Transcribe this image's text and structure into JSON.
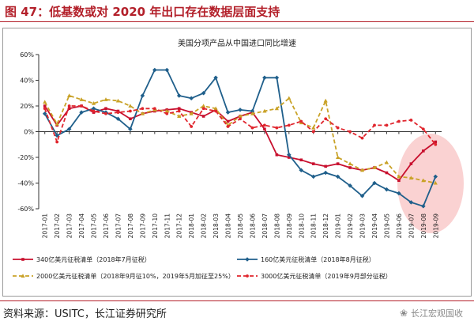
{
  "figure": {
    "title": "图 47：低基数或对 2020 年出口存在数据层面支持",
    "source": "资料来源：USITC，长江证券研究所",
    "watermark": "长江宏观国收",
    "watermark_icon": "wechat-icon"
  },
  "chart_data": {
    "type": "line",
    "title": "美国分项产品从中国进口同比增速",
    "yticks": [
      "60%",
      "40%",
      "20%",
      "0%",
      "-20%",
      "-40%",
      "-60%"
    ],
    "ylim": [
      -60,
      60
    ],
    "x": [
      "2017-01",
      "2017-02",
      "2017-03",
      "2017-04",
      "2017-05",
      "2017-06",
      "2017-07",
      "2017-08",
      "2017-09",
      "2017-10",
      "2017-11",
      "2017-12",
      "2018-01",
      "2018-02",
      "2018-03",
      "2018-04",
      "2018-05",
      "2018-06",
      "2018-07",
      "2018-08",
      "2018-09",
      "2018-10",
      "2018-11",
      "2018-12",
      "2019-01",
      "2019-02",
      "2019-03",
      "2019-04",
      "2019-05",
      "2019-06",
      "2019-07",
      "2019-08",
      "2019-09"
    ],
    "series": [
      {
        "name": "340亿美元征税清单（2018年7月征税）",
        "color": "#c8102e",
        "style": "solid",
        "marker": "square",
        "values": [
          20,
          5,
          18,
          20,
          15,
          18,
          16,
          10,
          14,
          16,
          17,
          18,
          15,
          12,
          17,
          8,
          12,
          15,
          2,
          -18,
          -20,
          -22,
          -25,
          -27,
          -25,
          -28,
          -30,
          -28,
          -32,
          -38,
          -25,
          -15,
          -8
        ]
      },
      {
        "name": "160亿美元征税清单（2018年8月征税）",
        "color": "#1f5f8b",
        "style": "solid",
        "marker": "diamond",
        "values": [
          14,
          -3,
          2,
          15,
          18,
          15,
          10,
          2,
          28,
          48,
          48,
          28,
          26,
          30,
          42,
          15,
          17,
          16,
          42,
          42,
          -18,
          -30,
          -35,
          -32,
          -35,
          -42,
          -50,
          -40,
          -45,
          -48,
          -55,
          -58,
          -35
        ]
      },
      {
        "name": "2000亿美元征税清单（2018年9月征10%，2019年5月加征至25%）",
        "color": "#c9a227",
        "style": "dashed",
        "marker": "triangle",
        "values": [
          23,
          6,
          28,
          25,
          22,
          25,
          24,
          20,
          14,
          17,
          16,
          12,
          14,
          20,
          18,
          5,
          12,
          14,
          16,
          18,
          26,
          7,
          3,
          24,
          -20,
          -25,
          -30,
          -28,
          -24,
          -35,
          -36,
          -38,
          -40
        ]
      },
      {
        "name": "3000亿美元征税清单（2019年9月部分征税）",
        "color": "#e0252d",
        "style": "dashed",
        "marker": "circle",
        "values": [
          18,
          -8,
          20,
          20,
          16,
          14,
          15,
          16,
          18,
          18,
          14,
          16,
          4,
          18,
          16,
          4,
          10,
          3,
          5,
          3,
          5,
          8,
          0,
          10,
          3,
          0,
          -5,
          5,
          5,
          8,
          9,
          2,
          -10
        ]
      }
    ]
  }
}
